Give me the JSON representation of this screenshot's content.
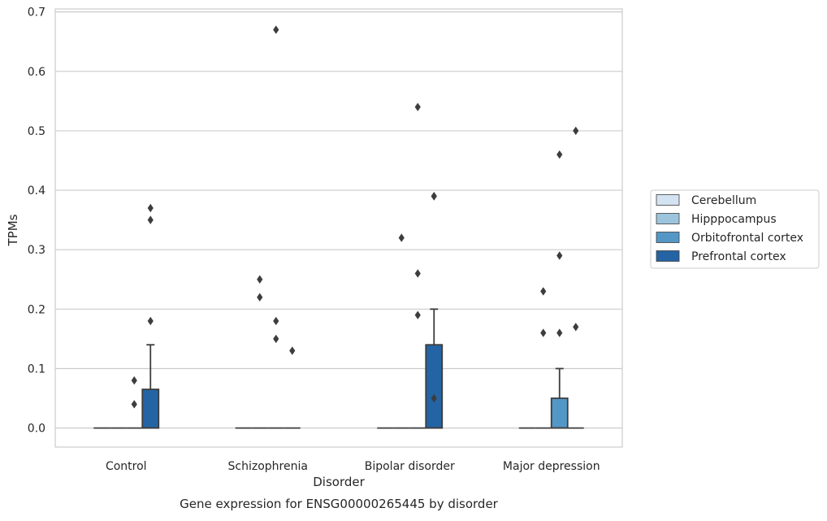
{
  "chart_data": {
    "type": "box",
    "title": "Gene expression for ENSG00000265445 by disorder",
    "xlabel": "Disorder",
    "ylabel": "TPMs",
    "ylim": [
      -0.032,
      0.705
    ],
    "yticks": [
      "0.0",
      "0.1",
      "0.2",
      "0.3",
      "0.4",
      "0.5",
      "0.6",
      "0.7"
    ],
    "categories": [
      "Control",
      "Schizophrenia",
      "Bipolar disorder",
      "Major depression"
    ],
    "grid": true,
    "legend_position": "right",
    "series": [
      {
        "name": "Cerebellum",
        "color": "#d4e3f1",
        "boxes": [
          {
            "q1": 0,
            "median": 0,
            "q3": 0,
            "whisker_low": 0,
            "whisker_high": 0,
            "outliers": []
          },
          {
            "q1": 0,
            "median": 0,
            "q3": 0,
            "whisker_low": 0,
            "whisker_high": 0,
            "outliers": []
          },
          {
            "q1": 0,
            "median": 0,
            "q3": 0,
            "whisker_low": 0,
            "whisker_high": 0,
            "outliers": []
          },
          {
            "q1": 0,
            "median": 0,
            "q3": 0,
            "whisker_low": 0,
            "whisker_high": 0,
            "outliers": []
          }
        ]
      },
      {
        "name": "Hipppocampus",
        "color": "#9cc5dd",
        "boxes": [
          {
            "q1": 0,
            "median": 0,
            "q3": 0,
            "whisker_low": 0,
            "whisker_high": 0,
            "outliers": []
          },
          {
            "q1": 0,
            "median": 0,
            "q3": 0,
            "whisker_low": 0,
            "whisker_high": 0,
            "outliers": [
              0.25,
              0.22
            ]
          },
          {
            "q1": 0,
            "median": 0,
            "q3": 0,
            "whisker_low": 0,
            "whisker_high": 0,
            "outliers": [
              0.32
            ]
          },
          {
            "q1": 0,
            "median": 0,
            "q3": 0,
            "whisker_low": 0,
            "whisker_high": 0,
            "outliers": [
              0.23,
              0.16
            ]
          }
        ]
      },
      {
        "name": "Orbitofrontal cortex",
        "color": "#5397c6",
        "boxes": [
          {
            "q1": 0,
            "median": 0,
            "q3": 0,
            "whisker_low": 0,
            "whisker_high": 0,
            "outliers": [
              0.08,
              0.04
            ]
          },
          {
            "q1": 0,
            "median": 0,
            "q3": 0,
            "whisker_low": 0,
            "whisker_high": 0,
            "outliers": [
              0.67,
              0.18,
              0.15
            ]
          },
          {
            "q1": 0,
            "median": 0,
            "q3": 0,
            "whisker_low": 0,
            "whisker_high": 0,
            "outliers": [
              0.54,
              0.26,
              0.19
            ]
          },
          {
            "q1": 0,
            "median": 0,
            "q3": 0.05,
            "whisker_low": 0,
            "whisker_high": 0.1,
            "outliers": [
              0.29,
              0.46,
              0.16
            ]
          }
        ]
      },
      {
        "name": "Prefrontal cortex",
        "color": "#2464a4",
        "boxes": [
          {
            "q1": 0,
            "median": 0,
            "q3": 0.065,
            "whisker_low": 0,
            "whisker_high": 0.14,
            "outliers": [
              0.37,
              0.35,
              0.18
            ]
          },
          {
            "q1": 0,
            "median": 0,
            "q3": 0,
            "whisker_low": 0,
            "whisker_high": 0,
            "outliers": [
              0.13
            ]
          },
          {
            "q1": 0,
            "median": 0,
            "q3": 0.14,
            "whisker_low": 0,
            "whisker_high": 0.2,
            "outliers": [
              0.39,
              0.39,
              0.05
            ]
          },
          {
            "q1": 0,
            "median": 0,
            "q3": 0,
            "whisker_low": 0,
            "whisker_high": 0,
            "outliers": [
              0.5,
              0.17
            ]
          }
        ]
      }
    ]
  }
}
